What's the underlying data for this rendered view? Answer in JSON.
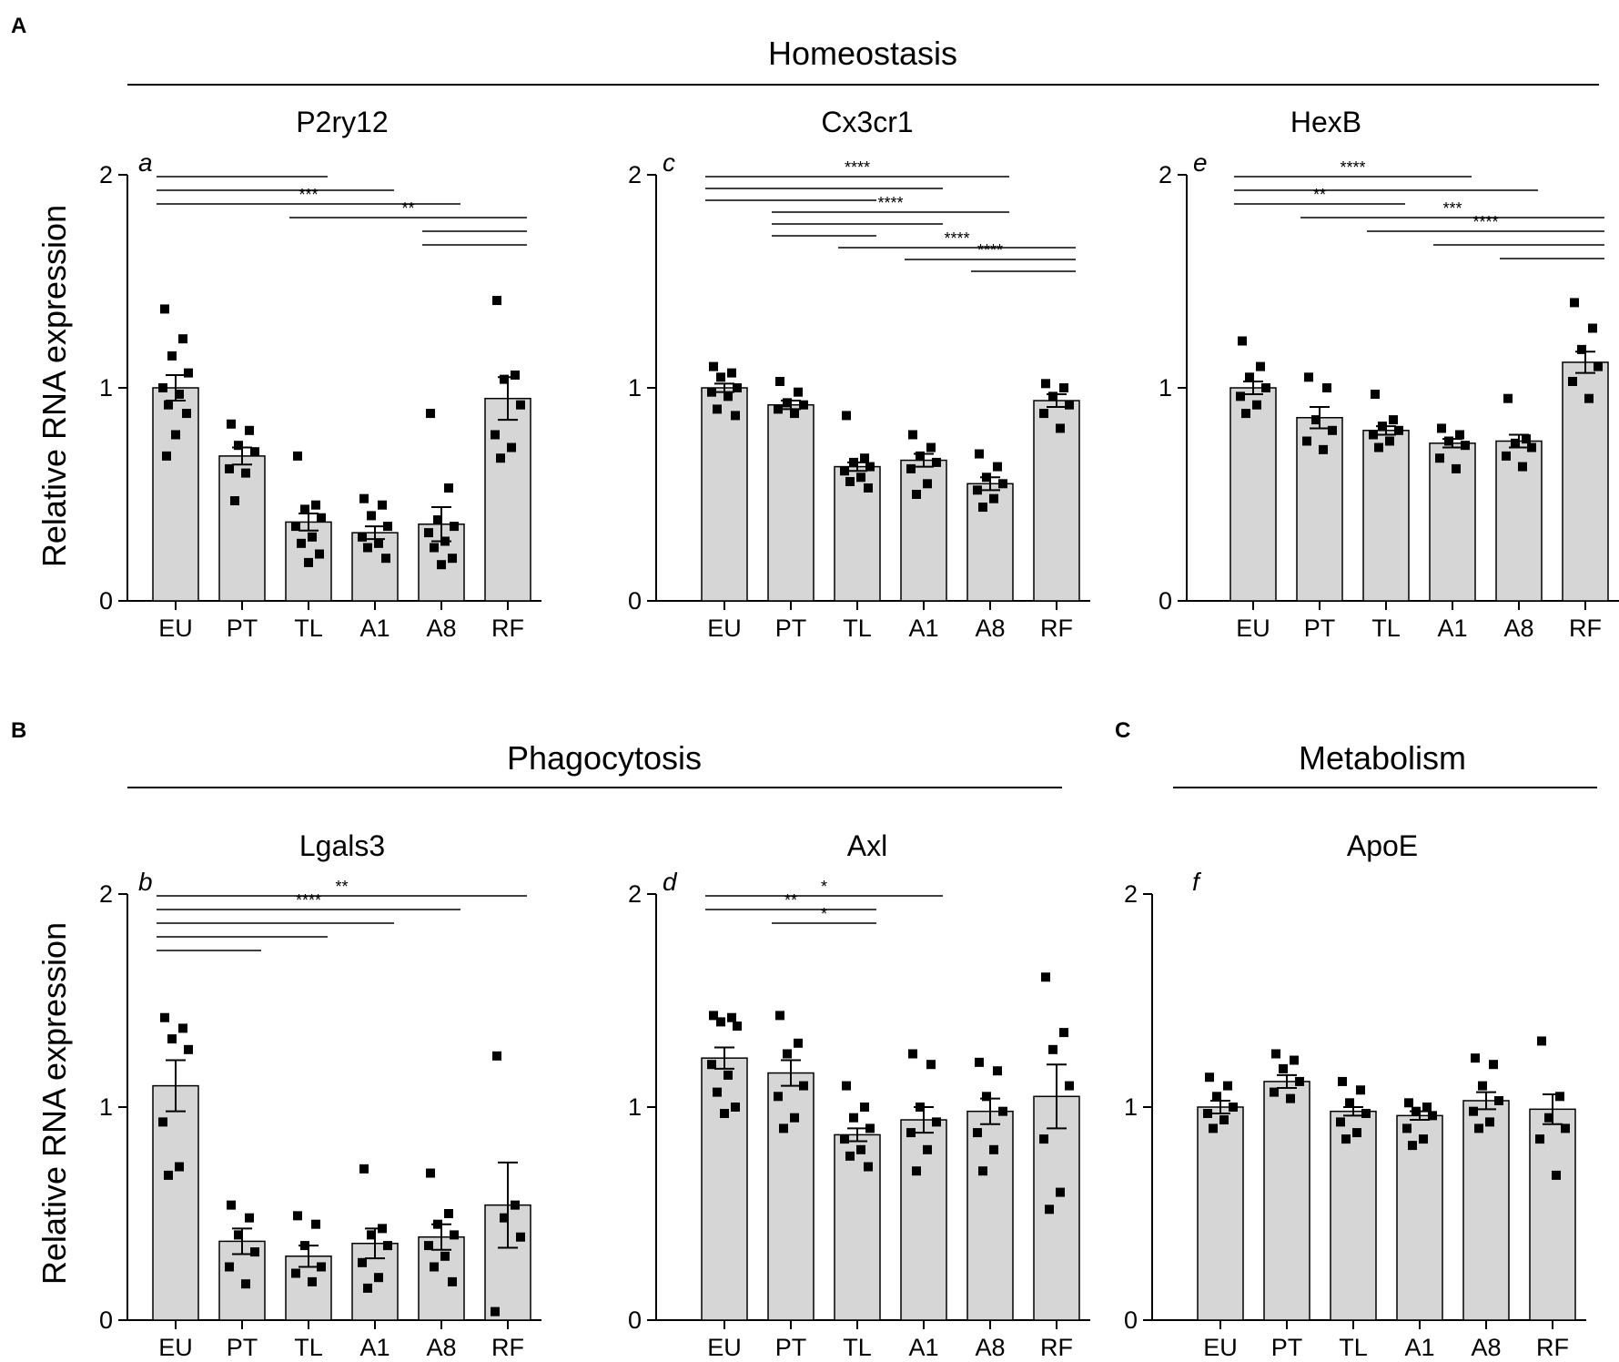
{
  "sections": {
    "A": {
      "letter": "A",
      "title": "Homeostasis"
    },
    "B": {
      "letter": "B",
      "title": "Phagocytosis"
    },
    "C": {
      "letter": "C",
      "title": "Metabolism"
    }
  },
  "ylabel": "Relative RNA expression",
  "colors": {
    "bar_fill": "#d6d6d6",
    "bar_stroke": "#000000",
    "point": "#000000"
  },
  "chart_data": [
    {
      "type": "bar",
      "section": "A",
      "gene": "P2ry12",
      "sublabel": "a",
      "categories": [
        "EU",
        "PT",
        "TL",
        "A1",
        "A8",
        "RF"
      ],
      "ylim": [
        0,
        2
      ],
      "yticks": [
        0,
        1,
        2
      ],
      "means": [
        1.0,
        0.68,
        0.37,
        0.32,
        0.36,
        0.95
      ],
      "sem": [
        0.06,
        0.04,
        0.04,
        0.03,
        0.08,
        0.1
      ],
      "points": [
        [
          1.37,
          1.23,
          1.15,
          1.07,
          1.0,
          0.97,
          0.92,
          0.88,
          0.78,
          0.68
        ],
        [
          0.83,
          0.8,
          0.73,
          0.7,
          0.62,
          0.6,
          0.47
        ],
        [
          0.68,
          0.45,
          0.43,
          0.39,
          0.35,
          0.3,
          0.27,
          0.22,
          0.18
        ],
        [
          0.48,
          0.45,
          0.4,
          0.35,
          0.3,
          0.27,
          0.25,
          0.2
        ],
        [
          0.88,
          0.53,
          0.38,
          0.35,
          0.32,
          0.28,
          0.25,
          0.2,
          0.17
        ],
        [
          1.41,
          1.06,
          1.04,
          0.92,
          0.78,
          0.72,
          0.67
        ]
      ],
      "significance": [
        {
          "from": 0,
          "to": 2,
          "label": ""
        },
        {
          "from": 0,
          "to": 3,
          "label": ""
        },
        {
          "from": 0,
          "to": 4,
          "label": "***"
        },
        {
          "from": 2,
          "to": 5,
          "label": "**"
        },
        {
          "from": 4,
          "to": 5,
          "label": ""
        },
        {
          "from": 5,
          "to": 4,
          "label": ""
        }
      ]
    },
    {
      "type": "bar",
      "section": "A",
      "gene": "Cx3cr1",
      "sublabel": "c",
      "categories": [
        "EU",
        "PT",
        "TL",
        "A1",
        "A8",
        "RF"
      ],
      "ylim": [
        0,
        2
      ],
      "yticks": [
        0,
        1,
        2
      ],
      "means": [
        1.0,
        0.92,
        0.63,
        0.66,
        0.55,
        0.94
      ],
      "sem": [
        0.02,
        0.02,
        0.02,
        0.03,
        0.03,
        0.03
      ],
      "points": [
        [
          1.1,
          1.07,
          1.05,
          1.0,
          0.98,
          0.96,
          0.9,
          0.87
        ],
        [
          1.03,
          0.98,
          0.93,
          0.92,
          0.9,
          0.88
        ],
        [
          0.87,
          0.67,
          0.65,
          0.63,
          0.61,
          0.58,
          0.56,
          0.53
        ],
        [
          0.78,
          0.72,
          0.68,
          0.65,
          0.62,
          0.55,
          0.5
        ],
        [
          0.69,
          0.63,
          0.58,
          0.55,
          0.52,
          0.48,
          0.44
        ],
        [
          1.02,
          1.0,
          0.96,
          0.92,
          0.88,
          0.81
        ]
      ],
      "significance": [
        {
          "from": 0,
          "to": 4,
          "label": "****"
        },
        {
          "from": 0,
          "to": 3,
          "label": ""
        },
        {
          "from": 0,
          "to": 2,
          "label": ""
        },
        {
          "from": 1,
          "to": 4,
          "label": "****"
        },
        {
          "from": 1,
          "to": 3,
          "label": ""
        },
        {
          "from": 1,
          "to": 2,
          "label": ""
        },
        {
          "from": 2,
          "to": 5,
          "label": "****"
        },
        {
          "from": 3,
          "to": 5,
          "label": "****"
        },
        {
          "from": 4,
          "to": 5,
          "label": ""
        }
      ]
    },
    {
      "type": "bar",
      "section": "A",
      "gene": "HexB",
      "sublabel": "e",
      "categories": [
        "EU",
        "PT",
        "TL",
        "A1",
        "A8",
        "RF"
      ],
      "ylim": [
        0,
        2
      ],
      "yticks": [
        0,
        1,
        2
      ],
      "means": [
        1.0,
        0.86,
        0.8,
        0.74,
        0.75,
        1.12
      ],
      "sem": [
        0.03,
        0.05,
        0.02,
        0.02,
        0.03,
        0.05
      ],
      "points": [
        [
          1.22,
          1.1,
          1.05,
          1.0,
          0.96,
          0.92,
          0.88
        ],
        [
          1.05,
          1.0,
          0.85,
          0.8,
          0.75,
          0.71
        ],
        [
          0.97,
          0.85,
          0.82,
          0.8,
          0.78,
          0.75,
          0.72
        ],
        [
          0.81,
          0.78,
          0.75,
          0.73,
          0.67,
          0.62
        ],
        [
          0.95,
          0.76,
          0.74,
          0.72,
          0.68,
          0.63
        ],
        [
          1.4,
          1.28,
          1.18,
          1.1,
          1.03,
          0.95
        ]
      ],
      "significance": [
        {
          "from": 0,
          "to": 3,
          "label": "****"
        },
        {
          "from": 0,
          "to": 4,
          "label": ""
        },
        {
          "from": 0,
          "to": 2,
          "label": "**"
        },
        {
          "from": 1,
          "to": 5,
          "label": "***"
        },
        {
          "from": 2,
          "to": 5,
          "label": "****"
        },
        {
          "from": 3,
          "to": 5,
          "label": ""
        },
        {
          "from": 4,
          "to": 5,
          "label": ""
        }
      ]
    },
    {
      "type": "bar",
      "section": "B",
      "gene": "Lgals3",
      "sublabel": "b",
      "categories": [
        "EU",
        "PT",
        "TL",
        "A1",
        "A8",
        "RF"
      ],
      "ylim": [
        0,
        2
      ],
      "yticks": [
        0,
        1,
        2
      ],
      "means": [
        1.1,
        0.37,
        0.3,
        0.36,
        0.39,
        0.54
      ],
      "sem": [
        0.12,
        0.06,
        0.05,
        0.07,
        0.06,
        0.2
      ],
      "points": [
        [
          1.42,
          1.37,
          1.32,
          1.27,
          0.93,
          0.72,
          0.68
        ],
        [
          0.54,
          0.48,
          0.4,
          0.32,
          0.25,
          0.17
        ],
        [
          0.49,
          0.45,
          0.35,
          0.25,
          0.22,
          0.18
        ],
        [
          0.71,
          0.43,
          0.4,
          0.35,
          0.27,
          0.2,
          0.15
        ],
        [
          0.69,
          0.5,
          0.45,
          0.4,
          0.35,
          0.3,
          0.25,
          0.18
        ],
        [
          1.24,
          0.54,
          0.48,
          0.39,
          0.04
        ]
      ],
      "significance": [
        {
          "from": 0,
          "to": 5,
          "label": "**"
        },
        {
          "from": 0,
          "to": 4,
          "label": "****"
        },
        {
          "from": 0,
          "to": 3,
          "label": ""
        },
        {
          "from": 0,
          "to": 2,
          "label": ""
        },
        {
          "from": 0,
          "to": 1,
          "label": ""
        }
      ]
    },
    {
      "type": "bar",
      "section": "B",
      "gene": "Axl",
      "sublabel": "d",
      "categories": [
        "EU",
        "PT",
        "TL",
        "A1",
        "A8",
        "RF"
      ],
      "ylim": [
        0,
        2
      ],
      "yticks": [
        0,
        1,
        2
      ],
      "means": [
        1.23,
        1.16,
        0.87,
        0.94,
        0.98,
        1.05
      ],
      "sem": [
        0.05,
        0.06,
        0.03,
        0.06,
        0.06,
        0.15
      ],
      "points": [
        [
          1.43,
          1.42,
          1.4,
          1.38,
          1.2,
          1.15,
          1.07,
          1.0,
          0.97
        ],
        [
          1.43,
          1.3,
          1.25,
          1.1,
          1.05,
          0.95,
          0.9
        ],
        [
          1.1,
          1.0,
          0.95,
          0.9,
          0.85,
          0.8,
          0.77,
          0.72
        ],
        [
          1.25,
          1.2,
          1.0,
          0.93,
          0.88,
          0.8,
          0.7
        ],
        [
          1.21,
          1.17,
          1.05,
          0.98,
          0.88,
          0.8,
          0.7
        ],
        [
          1.61,
          1.35,
          1.27,
          1.1,
          0.85,
          0.6,
          0.52
        ]
      ],
      "significance": [
        {
          "from": 0,
          "to": 3,
          "label": "*"
        },
        {
          "from": 0,
          "to": 2,
          "label": "**"
        },
        {
          "from": 1,
          "to": 2,
          "label": "*"
        }
      ]
    },
    {
      "type": "bar",
      "section": "C",
      "gene": "ApoE",
      "sublabel": "f",
      "categories": [
        "EU",
        "PT",
        "TL",
        "A1",
        "A8",
        "RF"
      ],
      "ylim": [
        0,
        2
      ],
      "yticks": [
        0,
        1,
        2
      ],
      "means": [
        1.0,
        1.12,
        0.98,
        0.96,
        1.03,
        0.99
      ],
      "sem": [
        0.03,
        0.03,
        0.02,
        0.02,
        0.04,
        0.07
      ],
      "points": [
        [
          1.14,
          1.1,
          1.05,
          1.0,
          0.97,
          0.94,
          0.9
        ],
        [
          1.25,
          1.22,
          1.18,
          1.12,
          1.07,
          1.04
        ],
        [
          1.12,
          1.08,
          1.02,
          0.97,
          0.93,
          0.88,
          0.85
        ],
        [
          1.02,
          1.0,
          0.98,
          0.96,
          0.9,
          0.85,
          0.82
        ],
        [
          1.23,
          1.2,
          1.1,
          1.03,
          0.98,
          0.93,
          0.9
        ],
        [
          1.31,
          1.05,
          0.95,
          0.9,
          0.85,
          0.68
        ]
      ],
      "significance": []
    }
  ]
}
